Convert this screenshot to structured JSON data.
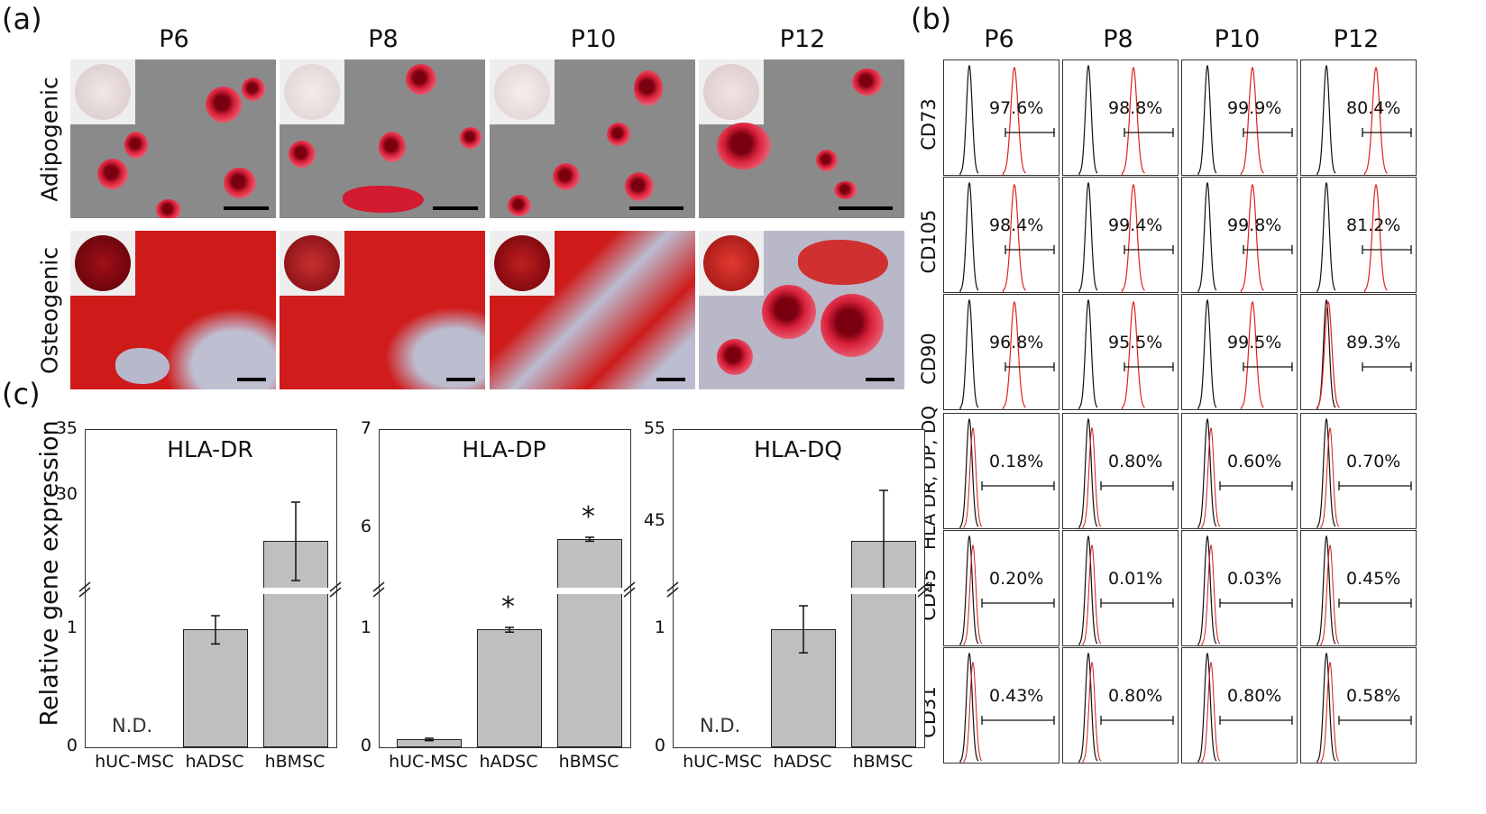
{
  "panels": {
    "a": "(a)",
    "b": "(b)",
    "c": "(c)"
  },
  "panel_a": {
    "columns": [
      "P6",
      "P8",
      "P10",
      "P12"
    ],
    "rows": [
      "Adipogenic",
      "Osteogenic"
    ]
  },
  "panel_b": {
    "columns": [
      "P6",
      "P8",
      "P10",
      "P12"
    ],
    "rows": [
      {
        "marker": "CD73",
        "values": [
          "97.6%",
          "98.8%",
          "99.9%",
          "80.4%"
        ]
      },
      {
        "marker": "CD105",
        "values": [
          "98.4%",
          "99.4%",
          "99.8%",
          "81.2%"
        ]
      },
      {
        "marker": "CD90",
        "values": [
          "96.8%",
          "95.5%",
          "99.5%",
          "89.3%"
        ]
      },
      {
        "marker": "HLA DR, DP, DQ",
        "values": [
          "0.18%",
          "0.80%",
          "0.60%",
          "0.70%"
        ]
      },
      {
        "marker": "CD45",
        "values": [
          "0.20%",
          "0.01%",
          "0.03%",
          "0.45%"
        ]
      },
      {
        "marker": "CD31",
        "values": [
          "0.43%",
          "0.80%",
          "0.80%",
          "0.58%"
        ]
      }
    ]
  },
  "chart_data": [
    {
      "type": "bar",
      "title": "HLA-DR",
      "ylabel": "Relative gene expression",
      "categories": [
        "hUC-MSC",
        "hADSC",
        "hBMSC"
      ],
      "values": [
        null,
        1,
        26.5
      ],
      "errors": [
        null,
        0.12,
        3.0
      ],
      "annotations": [
        "N.D.",
        "",
        ""
      ],
      "y_ticks_lower": [
        "0",
        "1"
      ],
      "y_ticks_upper": [
        "30",
        "35"
      ],
      "axis_break": true,
      "ylim_lower": [
        0,
        1.3
      ],
      "ylim_upper": [
        23,
        35
      ]
    },
    {
      "type": "bar",
      "title": "HLA-DP",
      "categories": [
        "hUC-MSC",
        "hADSC",
        "hBMSC"
      ],
      "values": [
        0.07,
        1,
        5.89
      ],
      "errors": [
        0.01,
        0.02,
        0.02
      ],
      "annotations": [
        "",
        "*",
        "*"
      ],
      "y_ticks_lower": [
        "0",
        "1"
      ],
      "y_ticks_upper": [
        "6",
        "7"
      ],
      "axis_break": true,
      "ylim_lower": [
        0,
        1.3
      ],
      "ylim_upper": [
        5.4,
        7
      ]
    },
    {
      "type": "bar",
      "title": "HLA-DQ",
      "categories": [
        "hUC-MSC",
        "hADSC",
        "hBMSC"
      ],
      "values": [
        null,
        1,
        43
      ],
      "errors": [
        null,
        0.2,
        5.5
      ],
      "annotations": [
        "N.D.",
        "",
        ""
      ],
      "y_ticks_lower": [
        "0",
        "1"
      ],
      "y_ticks_upper": [
        "45",
        "55"
      ],
      "axis_break": true,
      "ylim_lower": [
        0,
        1.3
      ],
      "ylim_upper": [
        38,
        55
      ]
    }
  ]
}
